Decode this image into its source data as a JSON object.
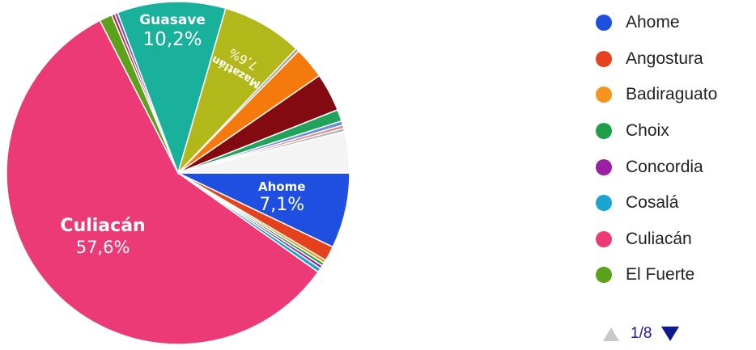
{
  "chart_data": {
    "type": "pie",
    "slices": [
      {
        "name": "Ahome",
        "value": 7.1,
        "color": "#1f4fe0",
        "label_pct": "7,1%"
      },
      {
        "name": "Angostura",
        "value": 1.4,
        "color": "#e4421d"
      },
      {
        "name": "Badiraguato",
        "value": 0.3,
        "color": "#f7941d"
      },
      {
        "name": "Choix",
        "value": 0.3,
        "color": "#1ea04a"
      },
      {
        "name": "Concordia",
        "value": 0.3,
        "color": "#9b1fa3"
      },
      {
        "name": "Cosalá",
        "value": 0.4,
        "color": "#1aa5d0"
      },
      {
        "name": "Culiacán",
        "value": 57.6,
        "color": "#ec3a77",
        "label_pct": "57,6%"
      },
      {
        "name": "El Fuerte",
        "value": 1.2,
        "color": "#5ba11b"
      },
      {
        "name": "",
        "value": 0.3,
        "color": "#c0233e"
      },
      {
        "name": "",
        "value": 0.3,
        "color": "#7a49b8"
      },
      {
        "name": "Guasave",
        "value": 10.2,
        "color": "#1ab19c",
        "label_pct": "10,2%"
      },
      {
        "name": "Mazatlán",
        "value": 7.6,
        "color": "#b3b81a",
        "label_pct": "7,6%"
      },
      {
        "name": "",
        "value": 0.3,
        "color": "#9a9a9a"
      },
      {
        "name": "",
        "value": 3.0,
        "color": "#f57a0d"
      },
      {
        "name": "",
        "value": 3.6,
        "color": "#840a12"
      },
      {
        "name": "",
        "value": 1.1,
        "color": "#21a35c"
      },
      {
        "name": "",
        "value": 0.4,
        "color": "#6b8fd8"
      },
      {
        "name": "",
        "value": 0.3,
        "color": "#e07f7f"
      },
      {
        "name": "",
        "value": 0.3,
        "color": "#b0b0b0"
      },
      {
        "name": "",
        "value": 3.9,
        "color": "#f4f4f4"
      }
    ],
    "labels": [
      {
        "name": "Ahome",
        "pct": "7,1%"
      },
      {
        "name": "Culiacán",
        "pct": "57,6%"
      },
      {
        "name": "Guasave",
        "pct": "10,2%"
      },
      {
        "name": "Mazatlán",
        "pct": "7,6%"
      }
    ],
    "legend": {
      "placement": "right",
      "items": [
        {
          "name": "Ahome",
          "color": "#1f4fe0"
        },
        {
          "name": "Angostura",
          "color": "#e4421d"
        },
        {
          "name": "Badiraguato",
          "color": "#f7941d"
        },
        {
          "name": "Choix",
          "color": "#1ea04a"
        },
        {
          "name": "Concordia",
          "color": "#9b1fa3"
        },
        {
          "name": "Cosalá",
          "color": "#1aa5d0"
        },
        {
          "name": "Culiacán",
          "color": "#ec3a77"
        },
        {
          "name": "El Fuerte",
          "color": "#5ba11b"
        }
      ]
    }
  },
  "pager": {
    "text": "1/8"
  }
}
